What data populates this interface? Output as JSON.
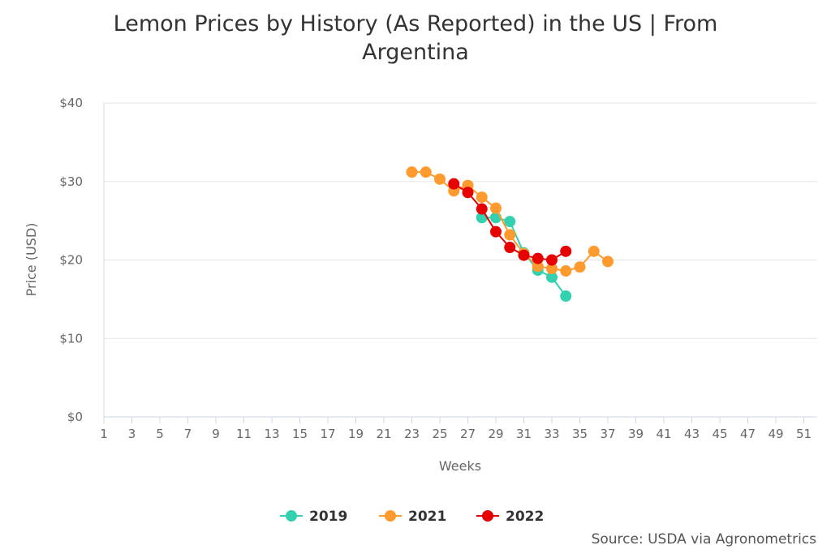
{
  "chart_data": {
    "type": "line",
    "title": "Lemon Prices by History (As Reported) in the US | From Argentina",
    "title_lines": [
      "Lemon Prices by History (As Reported) in the US | From",
      "Argentina"
    ],
    "xlabel": "Weeks",
    "ylabel": "Price (USD)",
    "xlim": [
      1,
      52
    ],
    "ylim": [
      0,
      40
    ],
    "xticks": [
      "1",
      "3",
      "5",
      "7",
      "9",
      "11",
      "13",
      "15",
      "17",
      "19",
      "21",
      "23",
      "25",
      "27",
      "29",
      "31",
      "33",
      "35",
      "37",
      "39",
      "41",
      "43",
      "45",
      "47",
      "49",
      "51"
    ],
    "yticks": [
      "$0",
      "$10",
      "$20",
      "$30",
      "$40"
    ],
    "grid": "horizontal",
    "legend": "bottom-center",
    "series": [
      {
        "name": "2019",
        "color": "#33d1b0",
        "x": [
          28,
          29,
          30,
          31,
          32,
          33,
          34
        ],
        "y": [
          25.4,
          25.4,
          24.9,
          20.9,
          18.7,
          17.8,
          15.4
        ]
      },
      {
        "name": "2021",
        "color": "#ff9a2e",
        "x": [
          23,
          24,
          25,
          26,
          27,
          28,
          29,
          30,
          31,
          32,
          33,
          34,
          35,
          36,
          37
        ],
        "y": [
          31.2,
          31.2,
          30.3,
          28.8,
          29.5,
          28.0,
          26.6,
          23.2,
          20.8,
          19.2,
          18.9,
          18.6,
          19.1,
          21.1,
          19.8
        ]
      },
      {
        "name": "2022",
        "color": "#e60000",
        "x": [
          26,
          27,
          28,
          29,
          30,
          31,
          32,
          33,
          34
        ],
        "y": [
          29.7,
          28.6,
          26.5,
          23.6,
          21.6,
          20.6,
          20.2,
          20.0,
          21.1
        ]
      }
    ]
  },
  "source": "Source: USDA via Agronometrics"
}
